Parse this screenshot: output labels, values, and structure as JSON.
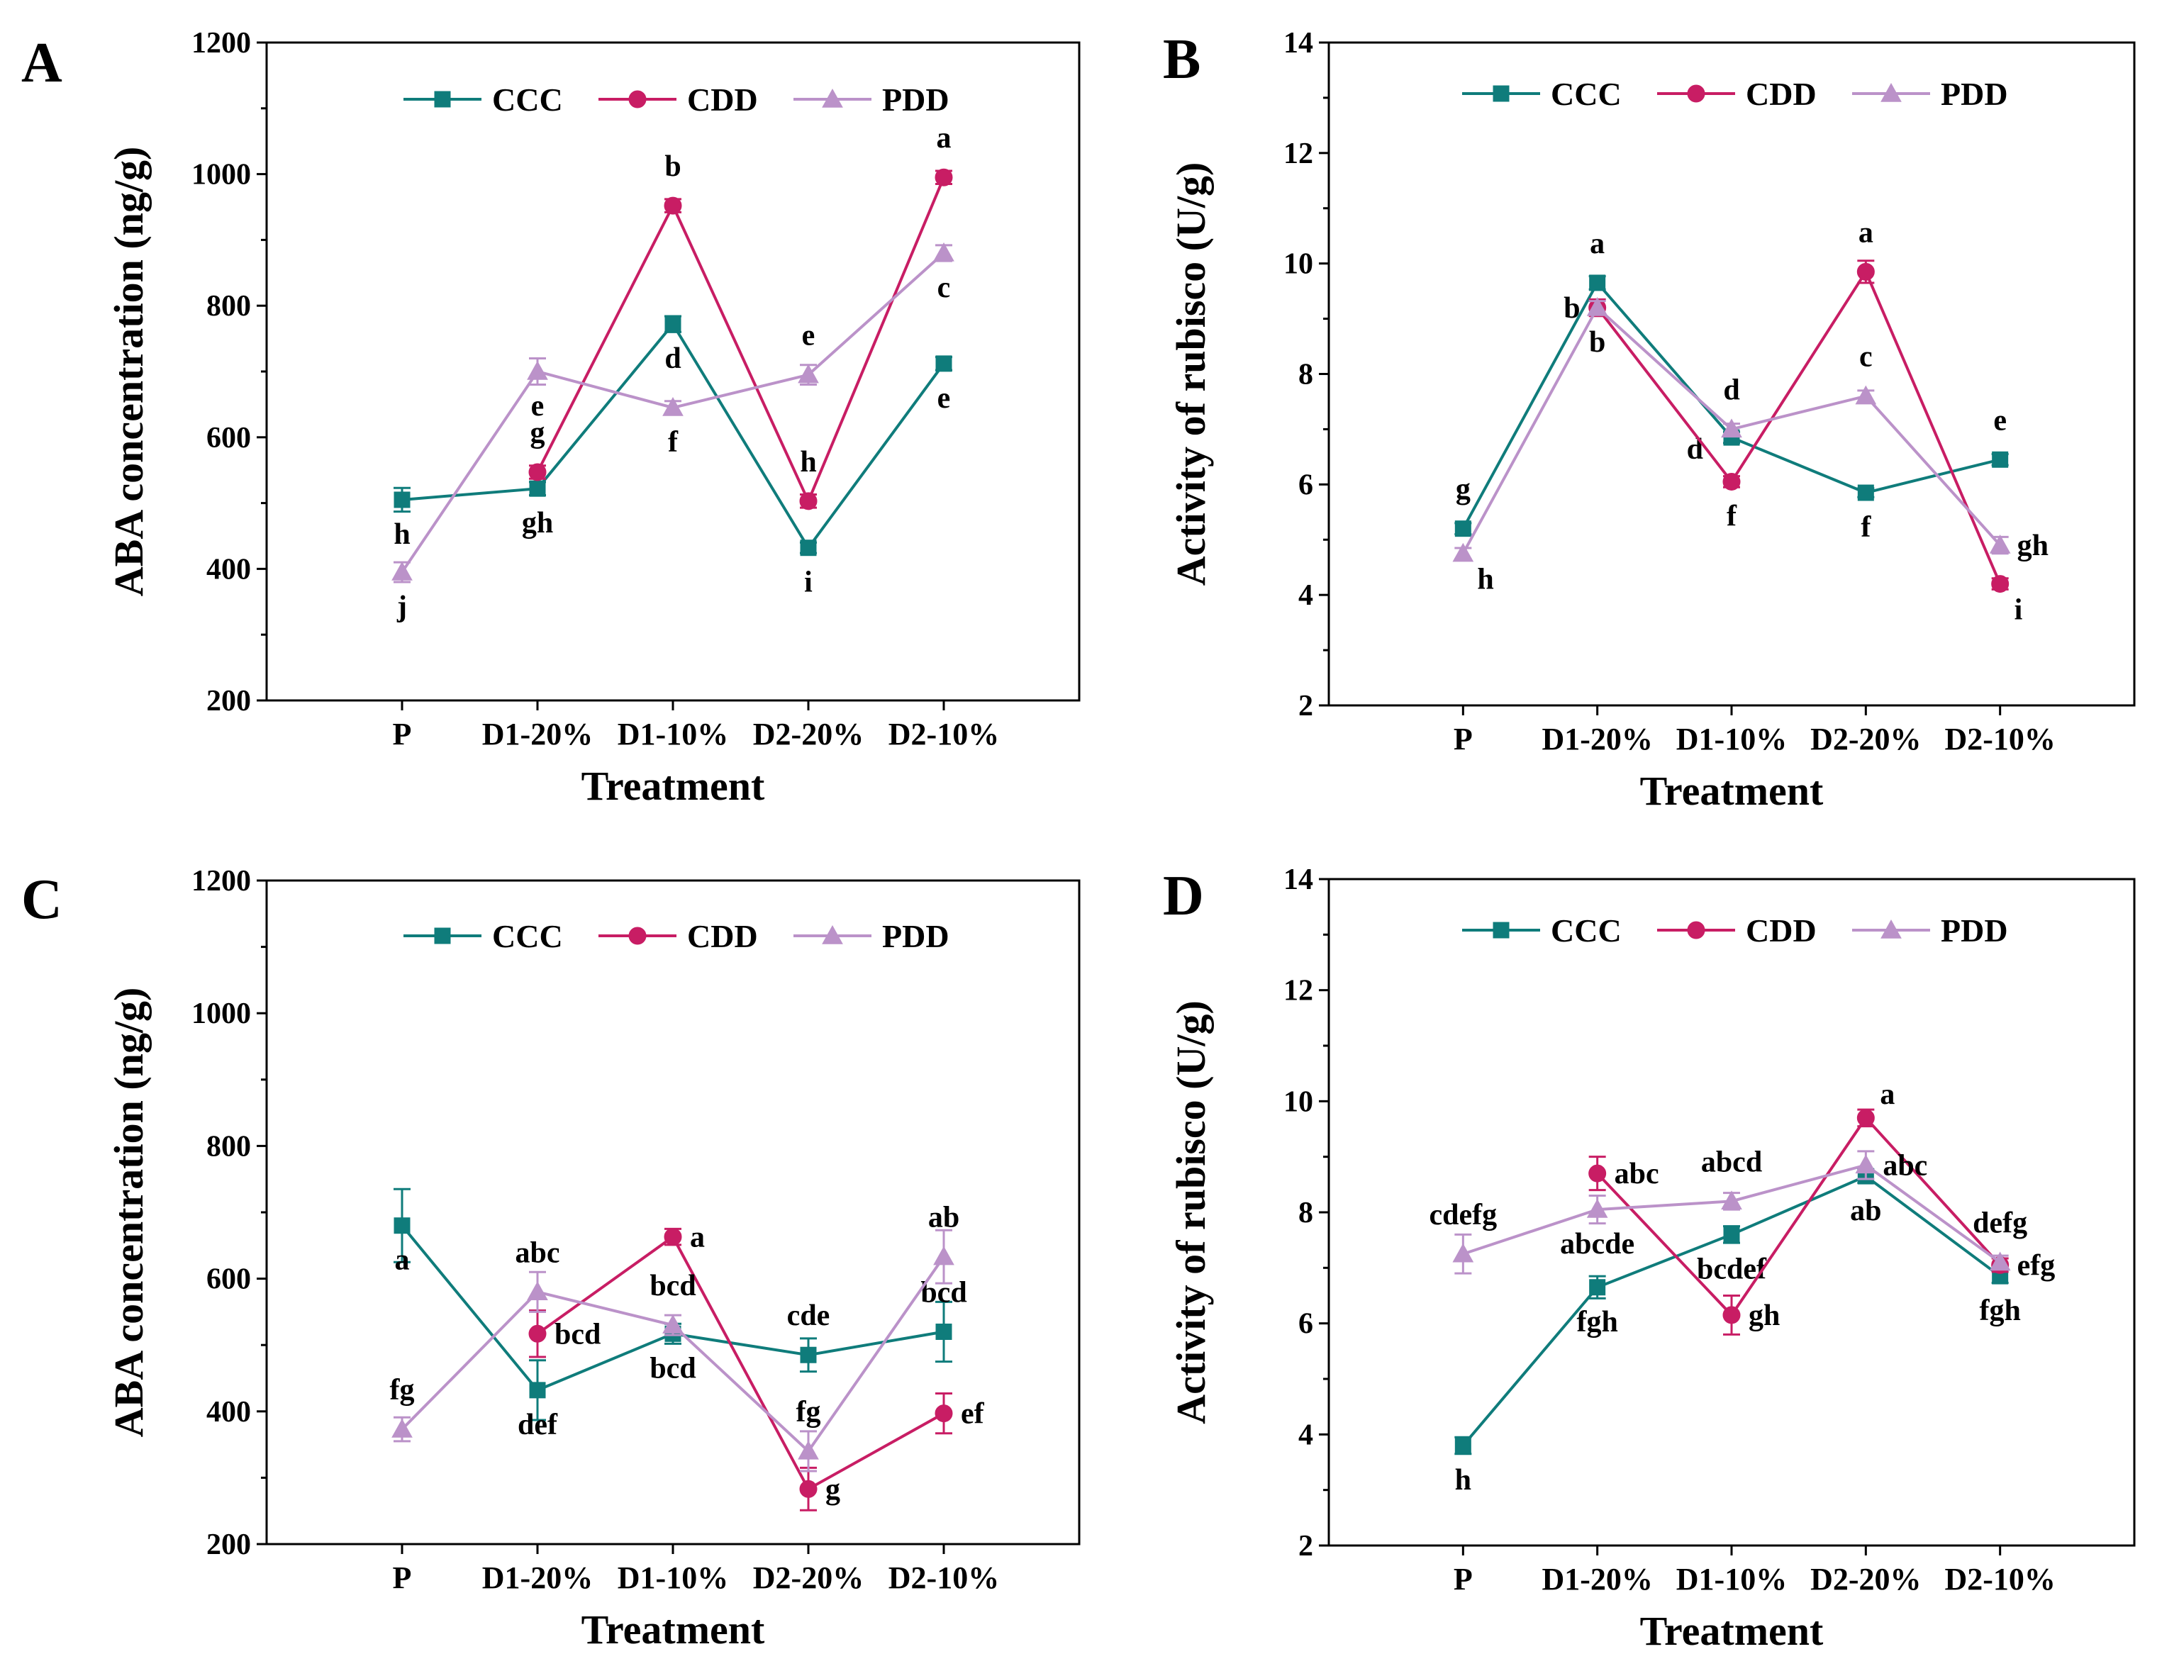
{
  "colors": {
    "CCC": "#0f7c7b",
    "CDD": "#c81d64",
    "PDD": "#bb92c9",
    "axis": "#000000"
  },
  "chart_data": [
    {
      "panel": "A",
      "type": "line",
      "xlabel": "Treatment",
      "ylabel": "ABA concentration (ng/g)",
      "categories": [
        "P",
        "D1-20%",
        "D1-10%",
        "D2-20%",
        "D2-10%"
      ],
      "ylim": [
        200,
        1200
      ],
      "yticks": [
        200,
        400,
        600,
        800,
        1000,
        1200
      ],
      "legend_position": "top",
      "series": [
        {
          "name": "CCC",
          "marker": "square",
          "values": [
            505,
            522,
            772,
            432,
            712
          ],
          "errors": [
            18,
            10,
            12,
            8,
            10
          ],
          "labels": [
            "h",
            "gh",
            "d",
            "i",
            "e"
          ],
          "label_pos": [
            "below",
            "below",
            "below",
            "below",
            "below"
          ]
        },
        {
          "name": "CDD",
          "marker": "circle",
          "values": [
            null,
            547,
            952,
            503,
            995
          ],
          "errors": [
            null,
            10,
            10,
            10,
            10
          ],
          "labels": [
            "",
            "g",
            "b",
            "h",
            "a"
          ],
          "label_pos": [
            "",
            "above",
            "above",
            "above",
            "above"
          ]
        },
        {
          "name": "PDD",
          "marker": "triangle",
          "values": [
            395,
            700,
            645,
            695,
            880
          ],
          "errors": [
            15,
            20,
            10,
            15,
            12
          ],
          "labels": [
            "j",
            "e",
            "f",
            "e",
            "c"
          ],
          "label_pos": [
            "below",
            "below",
            "below",
            "above",
            "below"
          ]
        }
      ]
    },
    {
      "panel": "B",
      "type": "line",
      "xlabel": "Treatment",
      "ylabel": "Activity of rubisco (U/g)",
      "categories": [
        "P",
        "D1-20%",
        "D1-10%",
        "D2-20%",
        "D2-10%"
      ],
      "ylim": [
        2,
        14
      ],
      "yticks": [
        2,
        4,
        6,
        8,
        10,
        12,
        14
      ],
      "legend_position": "top",
      "series": [
        {
          "name": "CCC",
          "marker": "square",
          "values": [
            5.2,
            9.65,
            6.85,
            5.85,
            6.45
          ],
          "errors": [
            0.1,
            0.12,
            0.1,
            0.08,
            0.1
          ],
          "labels": [
            "g",
            "a",
            "d",
            "f",
            "e"
          ],
          "label_pos": [
            "above",
            "above",
            "below-left",
            "below",
            "above"
          ]
        },
        {
          "name": "CDD",
          "marker": "circle",
          "values": [
            null,
            9.2,
            6.05,
            9.85,
            4.2
          ],
          "errors": [
            null,
            0.15,
            0.1,
            0.2,
            0.1
          ],
          "labels": [
            "",
            "b",
            "f",
            "a",
            "i"
          ],
          "label_pos": [
            "",
            "left",
            "below",
            "above",
            "below-right"
          ]
        },
        {
          "name": "PDD",
          "marker": "triangle",
          "values": [
            4.75,
            9.2,
            7.0,
            7.6,
            4.9
          ],
          "errors": [
            0.1,
            0.12,
            0.1,
            0.1,
            0.15
          ],
          "labels": [
            "h",
            "b",
            "d",
            "c",
            "gh"
          ],
          "label_pos": [
            "below-right",
            "below",
            "above",
            "above",
            "right"
          ]
        }
      ]
    },
    {
      "panel": "C",
      "type": "line",
      "xlabel": "Treatment",
      "ylabel": "ABA concentration (ng/g)",
      "categories": [
        "P",
        "D1-20%",
        "D1-10%",
        "D2-20%",
        "D2-10%"
      ],
      "ylim": [
        200,
        1200
      ],
      "yticks": [
        200,
        400,
        600,
        800,
        1000,
        1200
      ],
      "legend_position": "top",
      "series": [
        {
          "name": "CCC",
          "marker": "square",
          "values": [
            680,
            432,
            517,
            485,
            520
          ],
          "errors": [
            55,
            45,
            15,
            25,
            45
          ],
          "labels": [
            "a",
            "def",
            "bcd",
            "cde",
            "bcd"
          ],
          "label_pos": [
            "below",
            "below",
            "below",
            "above",
            "above"
          ]
        },
        {
          "name": "CDD",
          "marker": "circle",
          "values": [
            null,
            517,
            663,
            283,
            397
          ],
          "errors": [
            null,
            35,
            12,
            32,
            30
          ],
          "labels": [
            "",
            "bcd",
            "a",
            "g",
            "ef"
          ],
          "label_pos": [
            "",
            "right",
            "right",
            "right",
            "right"
          ]
        },
        {
          "name": "PDD",
          "marker": "triangle",
          "values": [
            373,
            580,
            530,
            340,
            633
          ],
          "errors": [
            18,
            30,
            15,
            30,
            40
          ],
          "labels": [
            "fg",
            "abc",
            "bcd",
            "fg",
            "ab"
          ],
          "label_pos": [
            "above",
            "above",
            "above",
            "above",
            "above"
          ]
        }
      ]
    },
    {
      "panel": "D",
      "type": "line",
      "xlabel": "Treatment",
      "ylabel": "Activity of rubisco (U/g)",
      "categories": [
        "P",
        "D1-20%",
        "D1-10%",
        "D2-20%",
        "D2-10%"
      ],
      "ylim": [
        2,
        14
      ],
      "yticks": [
        2,
        4,
        6,
        8,
        10,
        12,
        14
      ],
      "legend_position": "top",
      "series": [
        {
          "name": "CCC",
          "marker": "square",
          "values": [
            3.8,
            6.65,
            7.6,
            8.65,
            6.85
          ],
          "errors": [
            0.15,
            0.2,
            0.15,
            0.12,
            0.12
          ],
          "labels": [
            "h",
            "fgh",
            "bcdef",
            "ab",
            "fgh"
          ],
          "label_pos": [
            "below",
            "below",
            "below",
            "below",
            "below"
          ]
        },
        {
          "name": "CDD",
          "marker": "circle",
          "values": [
            null,
            8.7,
            6.15,
            9.7,
            7.05
          ],
          "errors": [
            null,
            0.3,
            0.35,
            0.15,
            0.12
          ],
          "labels": [
            "",
            "abc",
            "gh",
            "a",
            "efg"
          ],
          "label_pos": [
            "",
            "right",
            "right",
            "above-right",
            "right"
          ]
        },
        {
          "name": "PDD",
          "marker": "triangle",
          "values": [
            7.25,
            8.05,
            8.2,
            8.85,
            7.1
          ],
          "errors": [
            0.35,
            0.25,
            0.15,
            0.25,
            0.12
          ],
          "labels": [
            "cdefg",
            "abcde",
            "abcd",
            "abc",
            "defg"
          ],
          "label_pos": [
            "above",
            "below",
            "above",
            "right",
            "above"
          ]
        }
      ]
    }
  ]
}
